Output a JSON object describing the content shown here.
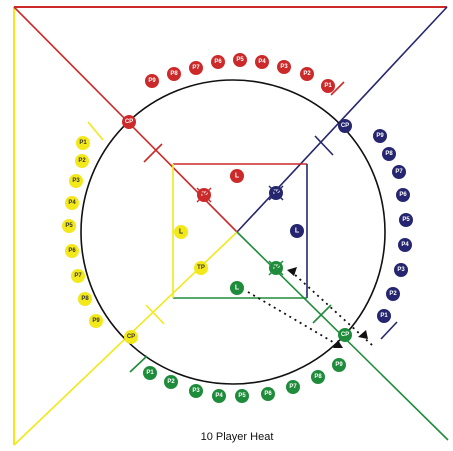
{
  "caption": "10 Player Heat",
  "colors": {
    "red": "#cc2a2a",
    "navy": "#262670",
    "yellow": "#f2e81a",
    "green": "#1e8c3a",
    "circle": "#111111",
    "arrow": "#111111"
  },
  "token_labels": {
    "corner_pivot": "CP",
    "turning_point": "TP",
    "lead": "L"
  },
  "teams": {
    "red": {
      "players": [
        "P9",
        "P8",
        "P7",
        "P6",
        "P5",
        "P4",
        "P3",
        "P2",
        "P1"
      ]
    },
    "navy": {
      "players": [
        "P9",
        "P8",
        "P7",
        "P6",
        "P5",
        "P4",
        "P3",
        "P2",
        "P1"
      ]
    },
    "yellow": {
      "players": [
        "P1",
        "P2",
        "P3",
        "P4",
        "P5",
        "P6",
        "P7",
        "P8",
        "P9"
      ]
    },
    "green": {
      "players": [
        "P1",
        "P2",
        "P3",
        "P4",
        "P5",
        "P6",
        "P7",
        "P8",
        "P9"
      ]
    }
  }
}
